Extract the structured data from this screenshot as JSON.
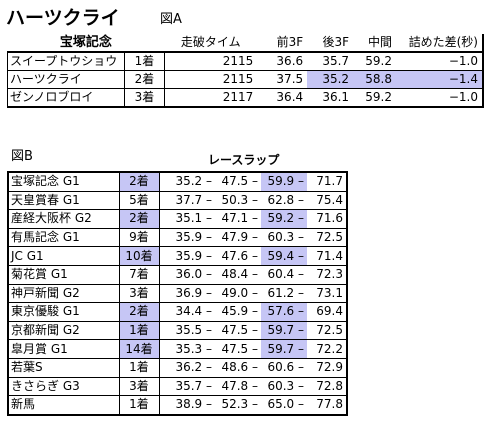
{
  "page_title": "ハーツクライ",
  "figure_a": {
    "label": "図A",
    "race_name": "宝塚記念",
    "columns": [
      "走破タイム",
      "前3F",
      "後3F",
      "中間",
      "詰めた差(秒)"
    ],
    "rows": [
      {
        "horse": "スイープトウショウ",
        "rank": "1着",
        "time": "2115",
        "first3f": "36.6",
        "last3f": "35.7",
        "middle": "59.2",
        "margin": "−1.0",
        "highlight_last3f": false,
        "highlight_middle": false,
        "highlight_margin": false
      },
      {
        "horse": "ハーツクライ",
        "rank": "2着",
        "time": "2115",
        "first3f": "37.5",
        "last3f": "35.2",
        "middle": "58.8",
        "margin": "−1.4",
        "highlight_last3f": true,
        "highlight_middle": true,
        "highlight_margin": true
      },
      {
        "horse": "ゼンノロブロイ",
        "rank": "3着",
        "time": "2117",
        "first3f": "36.4",
        "last3f": "36.1",
        "middle": "59.2",
        "margin": "−1.0",
        "highlight_last3f": false,
        "highlight_middle": false,
        "highlight_margin": false
      }
    ]
  },
  "figure_b": {
    "label": "図B",
    "title": "レースラップ",
    "rows": [
      {
        "race": "宝塚記念 G1",
        "result": "2着",
        "lap1": "35.2",
        "lap2": "47.5",
        "lap3": "59.9",
        "lap4": "71.7",
        "hl_result": true,
        "hl_lap3": true
      },
      {
        "race": "天皇賞春 G1",
        "result": "5着",
        "lap1": "37.7",
        "lap2": "50.3",
        "lap3": "62.8",
        "lap4": "75.4",
        "hl_result": false,
        "hl_lap3": false
      },
      {
        "race": "産経大阪杯 G2",
        "result": "2着",
        "lap1": "35.1",
        "lap2": "47.1",
        "lap3": "59.2",
        "lap4": "71.6",
        "hl_result": true,
        "hl_lap3": true
      },
      {
        "race": "有馬記念 G1",
        "result": "9着",
        "lap1": "35.9",
        "lap2": "47.9",
        "lap3": "60.3",
        "lap4": "72.5",
        "hl_result": false,
        "hl_lap3": false
      },
      {
        "race": "JC G1",
        "result": "10着",
        "lap1": "35.9",
        "lap2": "47.6",
        "lap3": "59.4",
        "lap4": "71.4",
        "hl_result": true,
        "hl_lap3": true
      },
      {
        "race": "菊花賞 G1",
        "result": "7着",
        "lap1": "36.0",
        "lap2": "48.4",
        "lap3": "60.4",
        "lap4": "72.3",
        "hl_result": false,
        "hl_lap3": false
      },
      {
        "race": "神戸新聞 G2",
        "result": "3着",
        "lap1": "36.9",
        "lap2": "49.0",
        "lap3": "61.2",
        "lap4": "73.1",
        "hl_result": false,
        "hl_lap3": false
      },
      {
        "race": "東京優駿 G1",
        "result": "2着",
        "lap1": "34.4",
        "lap2": "45.9",
        "lap3": "57.6",
        "lap4": "69.4",
        "hl_result": true,
        "hl_lap3": true
      },
      {
        "race": "京都新聞 G2",
        "result": "1着",
        "lap1": "35.5",
        "lap2": "47.5",
        "lap3": "59.7",
        "lap4": "72.5",
        "hl_result": true,
        "hl_lap3": true
      },
      {
        "race": "皐月賞 G1",
        "result": "14着",
        "lap1": "35.3",
        "lap2": "47.5",
        "lap3": "59.7",
        "lap4": "72.2",
        "hl_result": true,
        "hl_lap3": true
      },
      {
        "race": "若葉S",
        "result": "1着",
        "lap1": "36.2",
        "lap2": "48.6",
        "lap3": "60.6",
        "lap4": "72.9",
        "hl_result": false,
        "hl_lap3": false
      },
      {
        "race": "きさらぎ G3",
        "result": "3着",
        "lap1": "35.7",
        "lap2": "47.8",
        "lap3": "60.3",
        "lap4": "72.8",
        "hl_result": false,
        "hl_lap3": false
      },
      {
        "race": "新馬",
        "result": "1着",
        "lap1": "38.9",
        "lap2": "52.3",
        "lap3": "65.0",
        "lap4": "77.8",
        "hl_result": false,
        "hl_lap3": false
      }
    ]
  },
  "colors": {
    "highlight": "#c6c6f5",
    "border": "#000000"
  }
}
